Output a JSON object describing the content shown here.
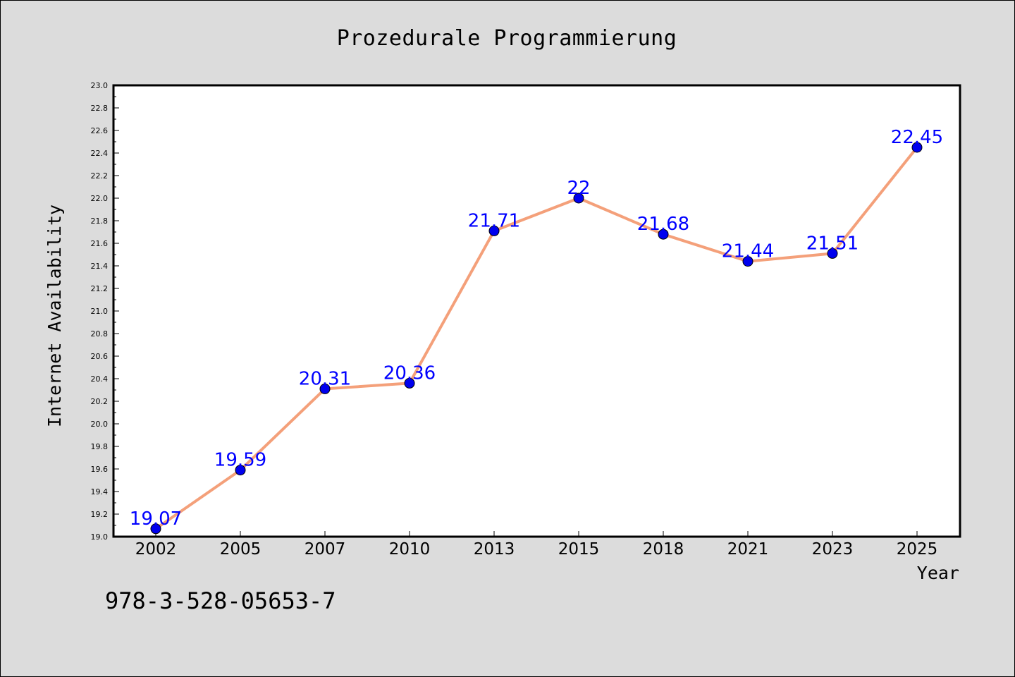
{
  "colors": {
    "background": "#dcdcdc",
    "plot_background": "#ffffff",
    "line": "#f4a07a",
    "marker": "#0000ee",
    "data_label": "#0000ff"
  },
  "isbn": "978-3-528-05653-7",
  "chart_data": {
    "type": "line",
    "title": "Prozedurale Programmierung",
    "xlabel": "Year",
    "ylabel": "Internet Availability",
    "categories": [
      "2002",
      "2005",
      "2007",
      "2010",
      "2013",
      "2015",
      "2018",
      "2021",
      "2023",
      "2025"
    ],
    "series": [
      {
        "values": [
          19.07,
          19.59,
          20.31,
          20.36,
          21.71,
          22,
          21.68,
          21.44,
          21.51,
          22.45
        ]
      }
    ],
    "data_labels": [
      "19.07",
      "19.59",
      "20.31",
      "20.36",
      "21.71",
      "22",
      "21.68",
      "21.44",
      "21.51",
      "22.45"
    ],
    "ylim": [
      19.0,
      23.0
    ],
    "yticks": [
      "19.0",
      "19.2",
      "19.4",
      "19.6",
      "19.8",
      "20.0",
      "20.2",
      "20.4",
      "20.6",
      "20.8",
      "21.0",
      "21.2",
      "21.4",
      "21.6",
      "21.8",
      "22.0",
      "22.2",
      "22.4",
      "22.6",
      "22.8",
      "23.0"
    ],
    "grid": false,
    "legend": "none"
  }
}
